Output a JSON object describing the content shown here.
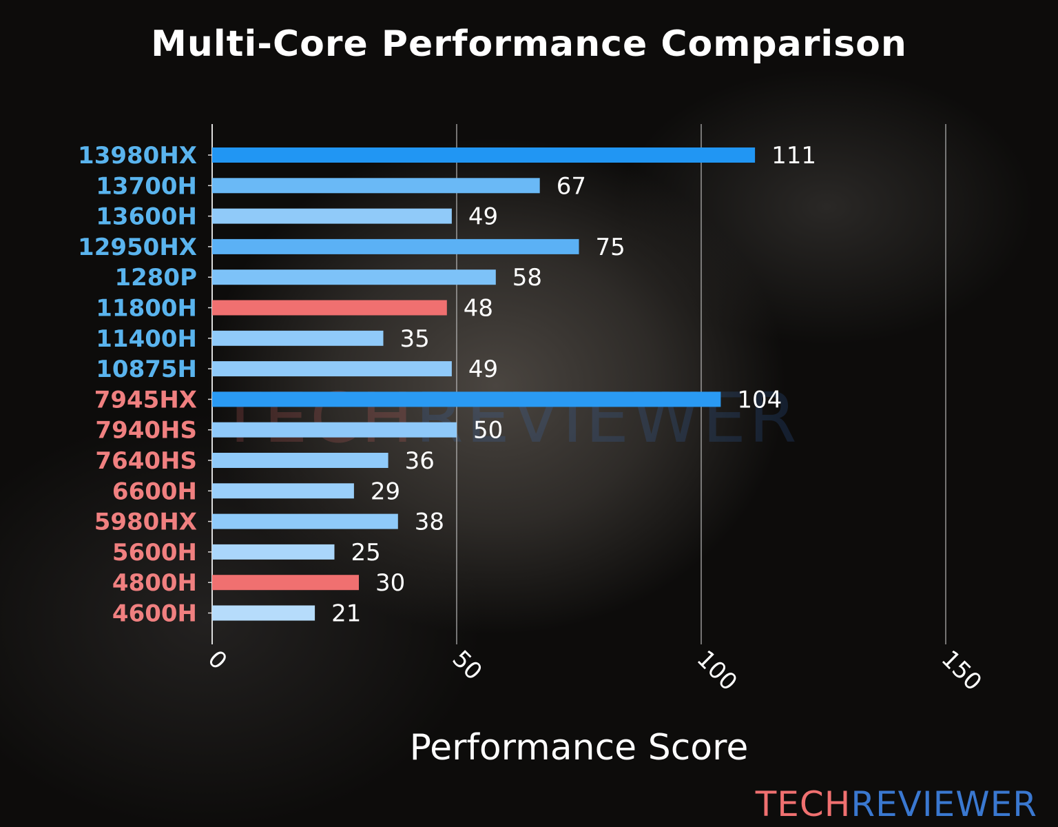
{
  "chart_data": {
    "type": "bar",
    "orientation": "horizontal",
    "title": "Multi-Core Performance Comparison",
    "xlabel": "Performance Score",
    "ylabel": "",
    "xlim": [
      0,
      150
    ],
    "xticks": [
      0,
      50,
      100,
      150
    ],
    "grid": "vertical",
    "categories": [
      "13980HX",
      "13700H",
      "13600H",
      "12950HX",
      "1280P",
      "11800H",
      "11400H",
      "10875H",
      "7945HX",
      "7940HS",
      "7640HS",
      "6600H",
      "5980HX",
      "5600H",
      "4800H",
      "4600H"
    ],
    "values": [
      111,
      67,
      49,
      75,
      58,
      48,
      35,
      49,
      104,
      50,
      36,
      29,
      38,
      25,
      30,
      21
    ],
    "bar_colors": [
      "#2196F3",
      "#6AB9F6",
      "#90CAF9",
      "#5BB1F5",
      "#7DC2F8",
      "#F07070",
      "#90CAF9",
      "#90CAF9",
      "#2A9AF3",
      "#8FC9F9",
      "#90CAF9",
      "#9ACFFA",
      "#8FCAF9",
      "#AAD6FB",
      "#F07070",
      "#B6DCFB"
    ],
    "label_colors": [
      "#5AB4EE",
      "#5AB4EE",
      "#5AB4EE",
      "#5AB4EE",
      "#5AB4EE",
      "#5AB4EE",
      "#5AB4EE",
      "#5AB4EE",
      "#F08080",
      "#F08080",
      "#F08080",
      "#F08080",
      "#F08080",
      "#F08080",
      "#F08080",
      "#F08080"
    ]
  },
  "watermark": {
    "part1": "TECH",
    "part2": "REVIEWER"
  },
  "logo": {
    "part1": "TECH",
    "part2": "REVIEWER",
    "color1": "#F07070",
    "color2": "#3A78D0"
  }
}
